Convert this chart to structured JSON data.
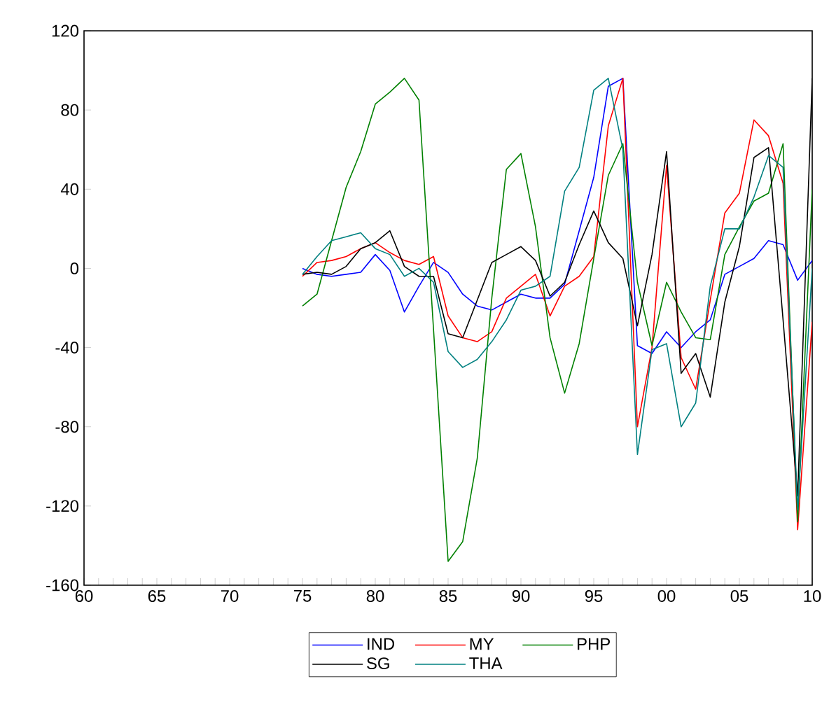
{
  "chart_data": {
    "type": "line",
    "x": [
      1975,
      1976,
      1977,
      1978,
      1979,
      1980,
      1981,
      1982,
      1983,
      1984,
      1985,
      1986,
      1987,
      1988,
      1989,
      1990,
      1991,
      1992,
      1993,
      1994,
      1995,
      1996,
      1997,
      1998,
      1999,
      2000,
      2001,
      2002,
      2003,
      2004,
      2005,
      2006,
      2007,
      2008,
      2009,
      2010
    ],
    "series": [
      {
        "name": "IND",
        "color": "#0000ff",
        "values": [
          0,
          -3,
          -4,
          -3,
          -2,
          7,
          -1,
          -22,
          -9,
          3,
          -2,
          -13,
          -19,
          -21,
          -17,
          -13,
          -15,
          -15,
          -8,
          19,
          46,
          92,
          96,
          -39,
          -43,
          -32,
          -40,
          -32,
          -26,
          -3,
          1,
          5,
          14,
          12,
          -6,
          4
        ]
      },
      {
        "name": "MY",
        "color": "#ff0000",
        "values": [
          -4,
          3,
          4,
          6,
          10,
          13,
          8,
          4,
          2,
          6,
          -24,
          -35,
          -37,
          -32,
          -15,
          -9,
          -3,
          -24,
          -9,
          -4,
          6,
          72,
          96,
          -80,
          -40,
          52,
          -45,
          -61,
          -16,
          28,
          38,
          75,
          67,
          43,
          -132,
          -27
        ]
      },
      {
        "name": "PHP",
        "color": "#008000",
        "values": [
          -19,
          -13,
          14,
          41,
          59,
          83,
          89,
          96,
          85,
          -31,
          -148,
          -138,
          -96,
          -15,
          50,
          58,
          21,
          -35,
          -63,
          -38,
          5,
          47,
          63,
          -7,
          -39,
          -7,
          -22,
          -35,
          -36,
          7,
          21,
          34,
          38,
          63,
          -128,
          40
        ]
      },
      {
        "name": "SG",
        "color": "#000000",
        "values": [
          -3,
          -2,
          -3,
          1,
          10,
          13,
          19,
          1,
          -4,
          -4,
          -33,
          -35,
          -16,
          3,
          7,
          11,
          4,
          -14,
          -7,
          12,
          29,
          13,
          5,
          -29,
          7,
          59,
          -53,
          -43,
          -65,
          -17,
          11,
          56,
          61,
          -26,
          -115,
          96
        ]
      },
      {
        "name": "THA",
        "color": "#008080",
        "values": [
          -3,
          6,
          14,
          16,
          18,
          10,
          7,
          -4,
          0,
          -7,
          -42,
          -50,
          -46,
          -37,
          -26,
          -11,
          -9,
          -4,
          39,
          51,
          90,
          96,
          60,
          -94,
          -41,
          -38,
          -80,
          -68,
          -9,
          20,
          20,
          36,
          57,
          51,
          -122,
          0
        ]
      }
    ],
    "xlim": [
      1960,
      2010
    ],
    "xticks": [
      {
        "value": 1960,
        "label": "60"
      },
      {
        "value": 1961,
        "label": null
      },
      {
        "value": 1962,
        "label": null
      },
      {
        "value": 1963,
        "label": null
      },
      {
        "value": 1964,
        "label": null
      },
      {
        "value": 1965,
        "label": "65"
      },
      {
        "value": 1966,
        "label": null
      },
      {
        "value": 1967,
        "label": null
      },
      {
        "value": 1968,
        "label": null
      },
      {
        "value": 1969,
        "label": null
      },
      {
        "value": 1970,
        "label": "70"
      },
      {
        "value": 1971,
        "label": null
      },
      {
        "value": 1972,
        "label": null
      },
      {
        "value": 1973,
        "label": null
      },
      {
        "value": 1974,
        "label": null
      },
      {
        "value": 1975,
        "label": "75"
      },
      {
        "value": 1976,
        "label": null
      },
      {
        "value": 1977,
        "label": null
      },
      {
        "value": 1978,
        "label": null
      },
      {
        "value": 1979,
        "label": null
      },
      {
        "value": 1980,
        "label": "80"
      },
      {
        "value": 1981,
        "label": null
      },
      {
        "value": 1982,
        "label": null
      },
      {
        "value": 1983,
        "label": null
      },
      {
        "value": 1984,
        "label": null
      },
      {
        "value": 1985,
        "label": "85"
      },
      {
        "value": 1986,
        "label": null
      },
      {
        "value": 1987,
        "label": null
      },
      {
        "value": 1988,
        "label": null
      },
      {
        "value": 1989,
        "label": null
      },
      {
        "value": 1990,
        "label": "90"
      },
      {
        "value": 1991,
        "label": null
      },
      {
        "value": 1992,
        "label": null
      },
      {
        "value": 1993,
        "label": null
      },
      {
        "value": 1994,
        "label": null
      },
      {
        "value": 1995,
        "label": "95"
      },
      {
        "value": 1996,
        "label": null
      },
      {
        "value": 1997,
        "label": null
      },
      {
        "value": 1998,
        "label": null
      },
      {
        "value": 1999,
        "label": null
      },
      {
        "value": 2000,
        "label": "00"
      },
      {
        "value": 2001,
        "label": null
      },
      {
        "value": 2002,
        "label": null
      },
      {
        "value": 2003,
        "label": null
      },
      {
        "value": 2004,
        "label": null
      },
      {
        "value": 2005,
        "label": "05"
      },
      {
        "value": 2006,
        "label": null
      },
      {
        "value": 2007,
        "label": null
      },
      {
        "value": 2008,
        "label": null
      },
      {
        "value": 2009,
        "label": null
      },
      {
        "value": 2010,
        "label": "10"
      }
    ],
    "ylim": [
      -160,
      120
    ],
    "yticks": [
      -160,
      -120,
      -80,
      -40,
      0,
      40,
      80,
      120
    ],
    "grid": false,
    "legend": "bottom",
    "line_style": "solid"
  }
}
